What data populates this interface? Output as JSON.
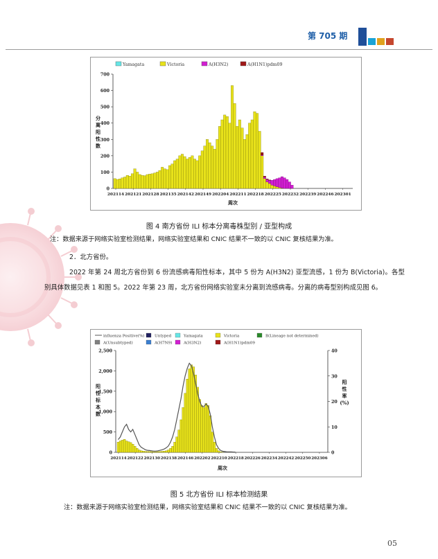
{
  "header": {
    "issue": "第 705 期"
  },
  "fig4": {
    "caption": "图 4  南方省份 ILI 标本分离毒株型别 / 亚型构成",
    "note": "注：数据来源于网络实验室检测结果，网络实验室结果和 CNIC 结果不一致的以 CNIC 复核结果为准。",
    "legend": [
      "Yamagata",
      "Victoria",
      "A(H3N2)",
      "A(H1N1)pdm09"
    ],
    "ylabel": [
      "分",
      "离",
      "阳",
      "性",
      "数"
    ],
    "xlabel": "周次",
    "yticks": [
      "0",
      "100",
      "200",
      "300",
      "400",
      "500",
      "600",
      "700"
    ],
    "xticks": [
      "202114",
      "202121",
      "202128",
      "202135",
      "202142",
      "202149",
      "202204",
      "202211",
      "202218",
      "202225",
      "202232",
      "202239",
      "202246",
      "202301"
    ]
  },
  "section": {
    "heading": "2．北方省份。",
    "para1": "2022 年第 24 周北方省份到 6 份流感病毒阳性标本，其中 5 份为 A(H3N2) 亚型流感，1 份为 B(Victoria)。各型别具体数据见表 1 和图 5。2022 年第 23 周，北方省份网络实验室未分离到流感病毒。分离的病毒型别构成见图 6。"
  },
  "fig5": {
    "caption": "图 5  北方省份 ILI 标本检测结果",
    "note": "注：数据来源于网络实验室检测结果，网络实验室结果和 CNIC 结果不一致的以 CNIC 复核结果为准。",
    "legend": [
      "influenza Positive(%)",
      "Untyped",
      "Yamagata",
      "Victoria",
      "B(Lineage not determined)",
      "A(Unsubtyped)",
      "A(H7N9)",
      "A(H3N2)",
      "A(H1N1)pdm09"
    ],
    "ylabel_left": [
      "阳",
      "性",
      "标",
      "本",
      "数"
    ],
    "ylabel_right": [
      "阳",
      "性",
      "率",
      "(%)"
    ],
    "xlabel": "周次",
    "yticks_left": [
      "0",
      "500",
      "1,000",
      "1,500",
      "2,000",
      "2,500"
    ],
    "yticks_right": [
      "0",
      "10",
      "20",
      "30",
      "40"
    ],
    "xticks": [
      "202114",
      "202122",
      "202130",
      "202138",
      "202146",
      "202202",
      "202210",
      "202218",
      "202226",
      "202234",
      "202242",
      "202250",
      "202306"
    ]
  },
  "page_number": "05",
  "colors": {
    "victoria": "#e8e21a",
    "yamagata": "#66e6e6",
    "h3n2": "#d21fd2",
    "h1n1": "#a01818",
    "line": "#555555",
    "header_blue": "#1f5fa8"
  },
  "chart_data": [
    {
      "type": "bar",
      "series_names": [
        "Victoria",
        "A(H3N2)",
        "A(H1N1)pdm09"
      ],
      "x_start_week": "202114",
      "victoria": [
        60,
        55,
        58,
        65,
        70,
        80,
        75,
        90,
        120,
        100,
        85,
        80,
        78,
        85,
        88,
        90,
        95,
        100,
        110,
        130,
        120,
        115,
        140,
        150,
        170,
        180,
        200,
        210,
        195,
        180,
        190,
        200,
        180,
        170,
        200,
        230,
        260,
        300,
        280,
        260,
        240,
        300,
        380,
        420,
        450,
        440,
        400,
        630,
        520,
        380,
        420,
        370,
        300,
        330,
        400,
        420,
        470,
        460,
        350,
        200,
        60,
        40,
        30,
        20,
        15,
        10,
        5,
        2,
        0,
        0,
        0,
        0,
        0,
        0
      ],
      "h3n2": [
        0,
        0,
        0,
        0,
        0,
        0,
        0,
        0,
        0,
        0,
        0,
        0,
        0,
        0,
        0,
        0,
        0,
        0,
        0,
        0,
        0,
        0,
        0,
        0,
        0,
        0,
        0,
        0,
        0,
        0,
        0,
        0,
        0,
        0,
        0,
        0,
        0,
        0,
        0,
        0,
        0,
        0,
        0,
        0,
        0,
        0,
        0,
        0,
        0,
        0,
        0,
        0,
        0,
        0,
        0,
        0,
        0,
        0,
        0,
        5,
        10,
        15,
        20,
        30,
        40,
        50,
        60,
        70,
        65,
        55,
        40,
        20,
        0,
        0
      ],
      "h1n1": [
        0,
        0,
        0,
        0,
        0,
        0,
        0,
        0,
        0,
        0,
        0,
        0,
        0,
        0,
        0,
        0,
        0,
        0,
        0,
        0,
        0,
        0,
        0,
        0,
        0,
        0,
        0,
        0,
        0,
        0,
        0,
        0,
        0,
        0,
        0,
        0,
        0,
        0,
        0,
        0,
        0,
        0,
        0,
        0,
        0,
        0,
        0,
        0,
        0,
        0,
        0,
        0,
        0,
        0,
        0,
        0,
        0,
        0,
        0,
        15,
        5,
        3,
        2,
        0,
        0,
        0,
        0,
        0,
        0,
        0,
        0,
        0,
        0,
        0
      ],
      "ylim": [
        0,
        700
      ]
    },
    {
      "type": "bar",
      "series_names": [
        "Victoria",
        "influenza Positive(%)"
      ],
      "x_start_week": "202114",
      "victoria": [
        250,
        280,
        300,
        320,
        280,
        260,
        240,
        200,
        150,
        100,
        60,
        40,
        30,
        25,
        20,
        20,
        18,
        15,
        15,
        18,
        20,
        25,
        30,
        40,
        60,
        100,
        150,
        250,
        380,
        550,
        800,
        1100,
        1450,
        1800,
        2050,
        2150,
        2100,
        1900,
        1600,
        1300,
        1150,
        1100,
        1200,
        1150,
        900,
        500,
        250,
        100,
        40,
        15,
        5,
        0,
        0,
        0,
        0,
        0,
        0
      ],
      "positive_rate": [
        5,
        6,
        8,
        10,
        11,
        9,
        8,
        9,
        7,
        5,
        3,
        2,
        1.5,
        1,
        0.8,
        0.7,
        0.6,
        0.5,
        0.5,
        0.6,
        0.8,
        1,
        1.3,
        1.8,
        2.5,
        4,
        6,
        9,
        13,
        17,
        21,
        26,
        30,
        33,
        35,
        34,
        31,
        27,
        23,
        20,
        18,
        18,
        19,
        18,
        15,
        10,
        6,
        3,
        1.5,
        0.7,
        0.4,
        0.3,
        0.2,
        0.2,
        0.2,
        0.1,
        0.1
      ],
      "ylim_left": [
        0,
        2500
      ],
      "ylim_right": [
        0,
        40
      ]
    }
  ]
}
